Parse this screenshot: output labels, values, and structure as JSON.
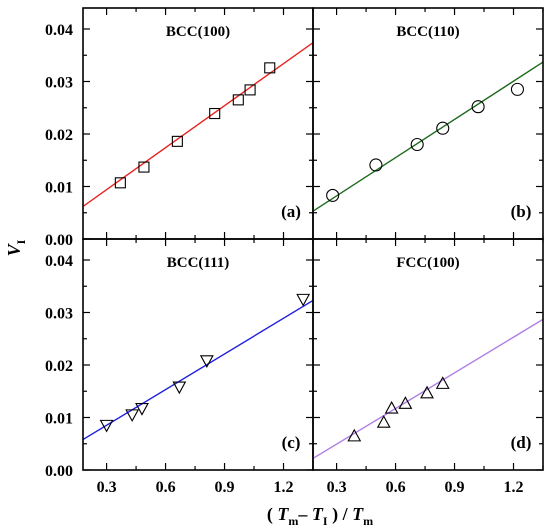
{
  "chart_data": [
    {
      "type": "scatter",
      "panel": "a",
      "title": "BCC(100)",
      "letter": "(a)",
      "marker": "square",
      "line_color": "#e8231f",
      "xlim": [
        0.18,
        1.35
      ],
      "ylim": [
        0.0,
        0.044
      ],
      "x": [
        0.37,
        0.49,
        0.66,
        0.85,
        0.97,
        1.03,
        1.13
      ],
      "y": [
        0.0107,
        0.0137,
        0.0186,
        0.0239,
        0.0265,
        0.0284,
        0.0326
      ],
      "fit": {
        "x": [
          0.18,
          1.35
        ],
        "y": [
          0.0062,
          0.0374
        ]
      }
    },
    {
      "type": "scatter",
      "panel": "b",
      "title": "BCC(110)",
      "letter": "(b)",
      "marker": "circle",
      "line_color": "#1e6a1e",
      "xlim": [
        0.18,
        1.35
      ],
      "ylim": [
        0.0,
        0.044
      ],
      "x": [
        0.28,
        0.5,
        0.71,
        0.84,
        1.02,
        1.22
      ],
      "y": [
        0.0083,
        0.0141,
        0.018,
        0.0211,
        0.0252,
        0.0285
      ],
      "fit": {
        "x": [
          0.18,
          1.35
        ],
        "y": [
          0.0053,
          0.0337
        ]
      }
    },
    {
      "type": "scatter",
      "panel": "c",
      "title": "BCC(111)",
      "letter": "(c)",
      "marker": "triangle-down",
      "line_color": "#1f1fe0",
      "xlim": [
        0.18,
        1.35
      ],
      "ylim": [
        0.0,
        0.044
      ],
      "x": [
        0.3,
        0.43,
        0.48,
        0.67,
        0.81,
        1.3
      ],
      "y": [
        0.0085,
        0.0105,
        0.0117,
        0.0158,
        0.0208,
        0.0325
      ],
      "fit": {
        "x": [
          0.18,
          1.35
        ],
        "y": [
          0.0058,
          0.0323
        ]
      }
    },
    {
      "type": "scatter",
      "panel": "d",
      "title": "FCC(100)",
      "letter": "(d)",
      "marker": "triangle-up",
      "line_color": "#b07ee6",
      "xlim": [
        0.18,
        1.35
      ],
      "ylim": [
        0.0,
        0.044
      ],
      "x": [
        0.39,
        0.54,
        0.58,
        0.65,
        0.76,
        0.84
      ],
      "y": [
        0.0065,
        0.0091,
        0.0118,
        0.0127,
        0.0147,
        0.0165
      ],
      "fit": {
        "x": [
          0.18,
          1.35
        ],
        "y": [
          0.0022,
          0.0287
        ]
      }
    }
  ],
  "y_axis": {
    "label_main": "V",
    "label_sub": "I",
    "ticks": [
      0.0,
      0.01,
      0.02,
      0.03,
      0.04
    ],
    "tick_labels": [
      "0.00",
      "0.01",
      "0.02",
      "0.03",
      "0.04"
    ]
  },
  "x_axis": {
    "ticks": [
      0.3,
      0.6,
      0.9,
      1.2
    ],
    "tick_labels": [
      "0.3",
      "0.6",
      "0.9",
      "1.2"
    ],
    "label_open": "( ",
    "label_T1": "T",
    "label_T1_sub": "m",
    "label_minus": "– ",
    "label_T2": "T",
    "label_T2_sub": "I",
    "label_close": " ) / ",
    "label_T3": "T",
    "label_T3_sub": "m"
  }
}
